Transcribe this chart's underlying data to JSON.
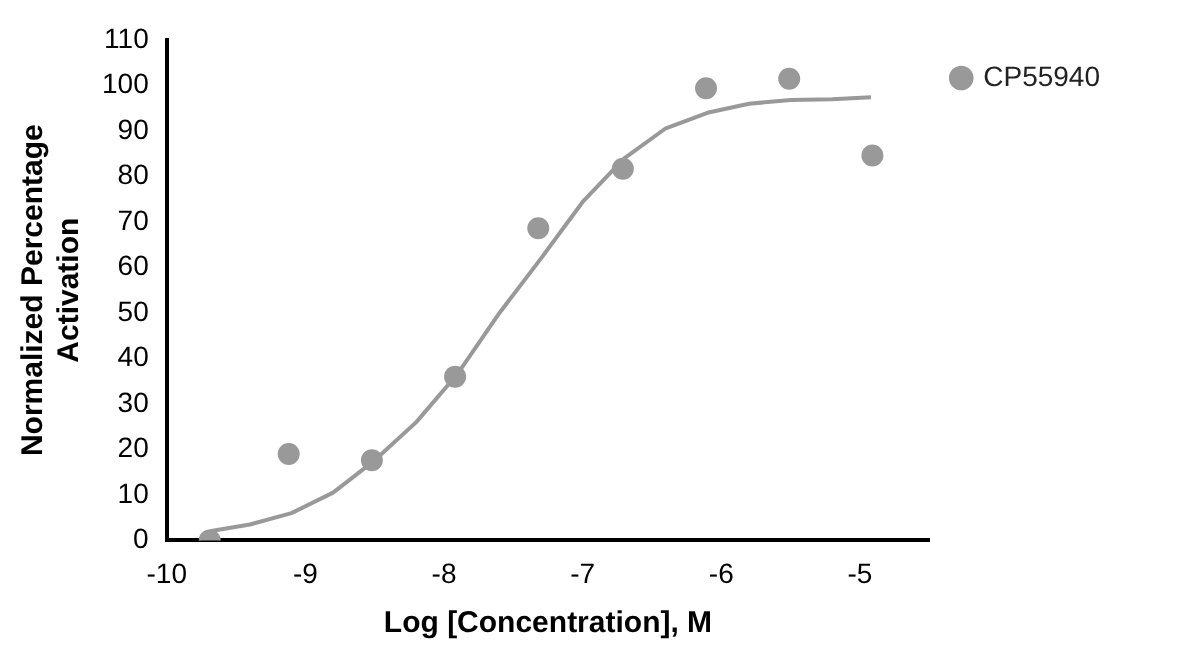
{
  "chart_data": {
    "type": "scatter",
    "xlabel": "Log [Concentration], M",
    "ylabel": "Normalized Percentage Activation",
    "series": [
      {
        "name": "CP55940",
        "color": "#999999",
        "marker": "circle",
        "x": [
          -9.69,
          -9.12,
          -8.52,
          -7.92,
          -7.32,
          -6.71,
          -6.11,
          -5.51,
          -4.91
        ],
        "values": [
          0,
          19,
          17.6,
          36,
          68.6,
          81.7,
          99.4,
          101.5,
          84.6
        ]
      },
      {
        "type": "line",
        "color": "#999999",
        "marker": "none",
        "x": [
          -9.69,
          -9.4,
          -9.1,
          -8.8,
          -8.5,
          -8.2,
          -7.9,
          -7.6,
          -7.3,
          -7.0,
          -6.7,
          -6.4,
          -6.1,
          -5.8,
          -5.5,
          -5.2,
          -4.92
        ],
        "values": [
          2,
          3.5,
          6,
          10.5,
          17.6,
          26,
          36.7,
          50,
          62,
          74.4,
          84,
          90.6,
          94,
          96,
          96.8,
          97,
          97.4
        ]
      }
    ],
    "xlim": [
      -10,
      -4.5
    ],
    "xticks": [
      -10,
      -9,
      -8,
      -7,
      -6,
      -5
    ],
    "ylim": [
      0,
      110
    ],
    "yticks": [
      0,
      10,
      20,
      30,
      40,
      50,
      60,
      70,
      80,
      90,
      100,
      110
    ],
    "grid": false,
    "legend": "top right"
  }
}
